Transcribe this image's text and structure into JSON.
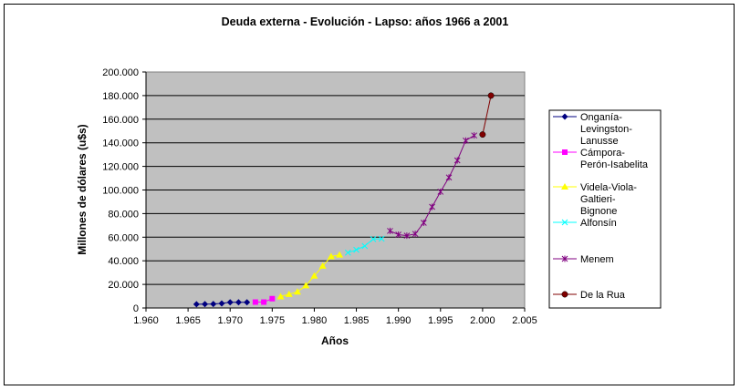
{
  "chart_data": {
    "type": "line",
    "title": "Deuda externa - Evolución - Lapso: años 1966 a 2001",
    "xlabel": "Años",
    "ylabel": "Millones de dólares (u$s)",
    "xlim": [
      1960,
      2005
    ],
    "ylim": [
      0,
      200000
    ],
    "x_ticks": [
      "1.960",
      "1.965",
      "1.970",
      "1.975",
      "1.980",
      "1.985",
      "1.990",
      "1.995",
      "2.000",
      "2.005"
    ],
    "y_ticks": [
      "0",
      "20.000",
      "40.000",
      "60.000",
      "80.000",
      "100.000",
      "120.000",
      "140.000",
      "160.000",
      "180.000",
      "200.000"
    ],
    "grid": "horizontal",
    "plot_background": "#c0c0c0",
    "legend_position": "right",
    "series": [
      {
        "name": "Onganía-Levingston-Lanusse",
        "color": "#000080",
        "marker": "diamond",
        "x": [
          1966,
          1967,
          1968,
          1969,
          1970,
          1971,
          1972
        ],
        "y": [
          3200,
          3300,
          3400,
          3900,
          4800,
          4800,
          4800
        ]
      },
      {
        "name": "Cámpora-Perón-Isabelita",
        "color": "#ff00ff",
        "marker": "square",
        "x": [
          1973,
          1974,
          1975
        ],
        "y": [
          5000,
          5000,
          7900
        ]
      },
      {
        "name": "Videla-Viola-Galtieri-Bignone",
        "color": "#ffff00",
        "marker": "triangle",
        "x": [
          1976,
          1977,
          1978,
          1979,
          1980,
          1981,
          1982,
          1983
        ],
        "y": [
          9700,
          11700,
          13700,
          19000,
          27200,
          35600,
          43600,
          45100
        ]
      },
      {
        "name": "Alfonsín",
        "color": "#00ffff",
        "marker": "x",
        "x": [
          1984,
          1985,
          1986,
          1987,
          1988
        ],
        "y": [
          46900,
          49300,
          52500,
          58400,
          58700
        ]
      },
      {
        "name": "Menem",
        "color": "#800080",
        "marker": "star",
        "x": [
          1989,
          1990,
          1991,
          1992,
          1993,
          1994,
          1995,
          1996,
          1997,
          1998,
          1999
        ],
        "y": [
          65300,
          62200,
          61300,
          62800,
          72200,
          85700,
          98500,
          110600,
          125100,
          141900,
          146200
        ]
      },
      {
        "name": "De la Rua",
        "color": "#800000",
        "marker": "circle",
        "x": [
          2000,
          2001
        ],
        "y": [
          147000,
          180000
        ]
      }
    ]
  }
}
